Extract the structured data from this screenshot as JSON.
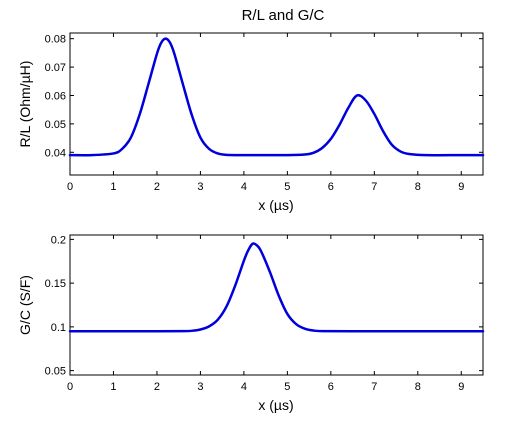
{
  "chart_data": [
    {
      "type": "line",
      "title": "R/L and G/C",
      "xlabel": "x (µs)",
      "ylabel": "R/L (Ohm/µH)",
      "xlim": [
        0,
        9.5
      ],
      "ylim": [
        0.032,
        0.082
      ],
      "xticks": [
        0,
        1,
        2,
        3,
        4,
        5,
        6,
        7,
        8,
        9
      ],
      "yticks": [
        0.04,
        0.05,
        0.06,
        0.07,
        0.08
      ],
      "ytick_labels": [
        "0.04",
        "0.05",
        "0.06",
        "0.07",
        "0.08"
      ],
      "grid": false,
      "series": [
        {
          "color": "#0000dd",
          "x": [
            0,
            0.5,
            1.0,
            1.2,
            1.4,
            1.6,
            1.8,
            2.0,
            2.1,
            2.2,
            2.3,
            2.4,
            2.6,
            2.8,
            3.0,
            3.2,
            3.4,
            3.6,
            4.0,
            5.0,
            5.4,
            5.6,
            5.8,
            6.0,
            6.2,
            6.4,
            6.6,
            6.8,
            7.0,
            7.2,
            7.4,
            7.6,
            7.8,
            8.2,
            9.0,
            9.5
          ],
          "y": [
            0.039,
            0.039,
            0.0396,
            0.0412,
            0.0452,
            0.0532,
            0.0638,
            0.0747,
            0.0786,
            0.08,
            0.0786,
            0.0747,
            0.0638,
            0.0532,
            0.0452,
            0.0412,
            0.0396,
            0.0391,
            0.039,
            0.039,
            0.0392,
            0.0398,
            0.0415,
            0.0447,
            0.0497,
            0.0556,
            0.06,
            0.0583,
            0.0535,
            0.0475,
            0.0427,
            0.0403,
            0.0394,
            0.039,
            0.039,
            0.039
          ]
        }
      ]
    },
    {
      "type": "line",
      "title": "",
      "xlabel": "x (µs)",
      "ylabel": "G/C (S/F)",
      "xlim": [
        0,
        9.5
      ],
      "ylim": [
        0.045,
        0.205
      ],
      "xticks": [
        0,
        1,
        2,
        3,
        4,
        5,
        6,
        7,
        8,
        9
      ],
      "yticks": [
        0.05,
        0.1,
        0.15,
        0.2
      ],
      "ytick_labels": [
        "0.05",
        "0.1",
        "0.15",
        "0.2"
      ],
      "grid": false,
      "series": [
        {
          "color": "#0000dd",
          "x": [
            0,
            1.0,
            2.0,
            2.6,
            2.8,
            3.0,
            3.2,
            3.4,
            3.6,
            3.8,
            4.0,
            4.1,
            4.2,
            4.3,
            4.4,
            4.6,
            4.8,
            5.0,
            5.2,
            5.4,
            5.6,
            5.8,
            6.5,
            8.0,
            9.5
          ],
          "y": [
            0.095,
            0.095,
            0.095,
            0.0951,
            0.0955,
            0.097,
            0.1006,
            0.1082,
            0.1233,
            0.1472,
            0.1757,
            0.1875,
            0.195,
            0.1931,
            0.186,
            0.1625,
            0.1359,
            0.1148,
            0.1032,
            0.0979,
            0.0958,
            0.0952,
            0.095,
            0.095,
            0.095
          ]
        }
      ]
    }
  ]
}
